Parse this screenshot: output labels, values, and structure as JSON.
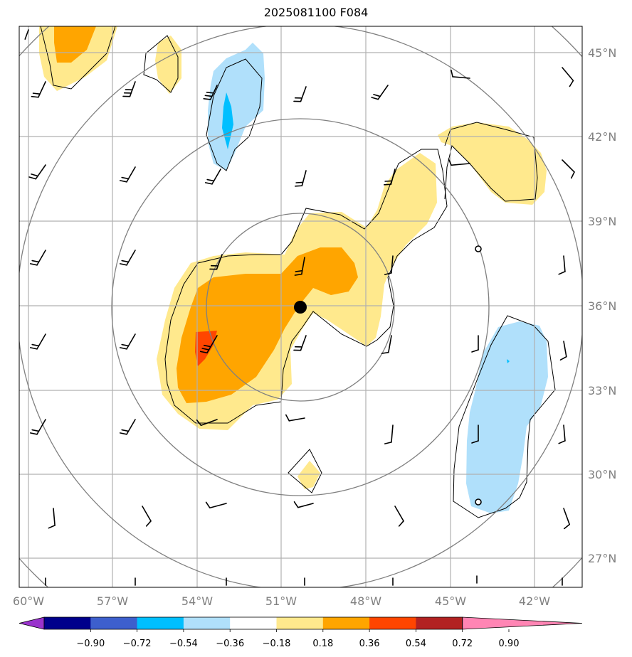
{
  "title": "2025081100 F084",
  "axes": {
    "lon_ticks": [
      "60°W",
      "57°W",
      "54°W",
      "51°W",
      "48°W",
      "45°W",
      "42°W"
    ],
    "lat_ticks": [
      "45°N",
      "42°N",
      "39°N",
      "36°N",
      "33°N",
      "30°N",
      "27°N"
    ]
  },
  "colorbar": {
    "labels": [
      "−0.90",
      "−0.72",
      "−0.54",
      "−0.36",
      "−0.18",
      "0.18",
      "0.36",
      "0.54",
      "0.72",
      "0.90"
    ],
    "colors": [
      "#9933cc",
      "#00008b",
      "#3d5fcd",
      "#00bfff",
      "#b0e0fb",
      "#ffffff",
      "#ffe98d",
      "#ffa500",
      "#ff4500",
      "#b22222",
      "#ff85b4"
    ],
    "extend": "both"
  },
  "center_marker": {
    "lon": -50.2,
    "lat": 35.9
  },
  "range_rings": 4,
  "palette": {
    "positive_1": "#ffe98d",
    "positive_2": "#ffa500",
    "positive_3": "#ff4500",
    "negative_1": "#b0e0fb",
    "negative_2": "#00bfff",
    "grid": "#b0b0b0",
    "ring": "#808080"
  }
}
